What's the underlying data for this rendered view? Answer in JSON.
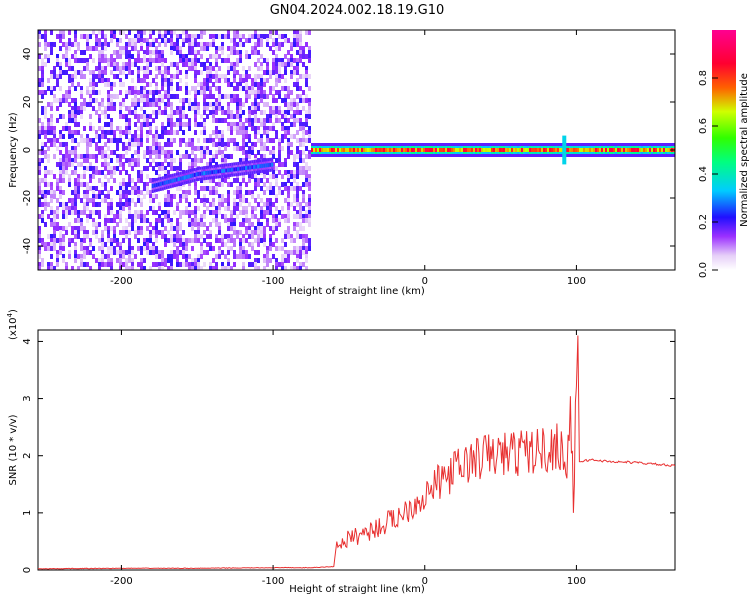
{
  "title": "GN04.2024.002.18.19.G10",
  "chart_data": [
    {
      "type": "heatmap",
      "xlabel": "Height of straight line (km)",
      "ylabel": "Frequency (Hz)",
      "xlim": [
        -255,
        165
      ],
      "ylim": [
        -50,
        50
      ],
      "x_ticks": [
        -200,
        -100,
        0,
        100
      ],
      "y_ticks": [
        -40,
        -20,
        0,
        20,
        40
      ],
      "colorbar": {
        "label": "Normalized spectral amplitude",
        "range": [
          0.0,
          1.0
        ],
        "ticks": [
          "0.0",
          "0.2",
          "0.4",
          "0.6",
          "0.8"
        ],
        "colormap": "rainbow (purple → blue → cyan → green → yellow → red → magenta)"
      },
      "features": {
        "noise_region_x": [
          -255,
          -75
        ],
        "trace_segments": [
          {
            "x": [
              -180,
              -150
            ],
            "freq": [
              -15,
              -10
            ],
            "amplitude": 0.3
          },
          {
            "x": [
              -150,
              -100
            ],
            "freq": [
              -10,
              -6
            ],
            "amplitude": 0.3
          },
          {
            "x": [
              -75,
              165
            ],
            "freq": [
              0,
              0
            ],
            "amplitude": 0.9
          }
        ],
        "spike_at_x": 92
      }
    },
    {
      "type": "line",
      "xlabel": "Height of straight line (km)",
      "ylabel": "SNR (10 * v/v)",
      "y_scale_label": "(x10",
      "y_scale_exp": "4",
      "y_scale_close": ")",
      "xlim": [
        -255,
        165
      ],
      "ylim": [
        0,
        4.2
      ],
      "x_ticks": [
        -200,
        -100,
        0,
        100
      ],
      "y_ticks": [
        0,
        1,
        2,
        3,
        4
      ],
      "line_color": "#e83030",
      "series": [
        {
          "x": [
            -255,
            -200,
            -150,
            -100,
            -75,
            -60,
            -58,
            -55,
            -50,
            -45,
            -40,
            -30,
            -20,
            -10,
            0,
            10,
            20,
            30,
            40,
            50,
            60,
            70,
            80,
            85,
            90,
            93,
            96,
            98,
            100,
            101,
            102,
            110,
            120,
            140,
            165
          ],
          "y": [
            0.02,
            0.03,
            0.03,
            0.04,
            0.04,
            0.06,
            0.5,
            0.45,
            0.55,
            0.6,
            0.65,
            0.75,
            0.9,
            1.1,
            1.3,
            1.55,
            1.75,
            1.9,
            2.0,
            2.02,
            2.05,
            2.08,
            2.1,
            2.15,
            2.2,
            1.6,
            2.8,
            1.2,
            3.2,
            4.1,
            1.9,
            1.93,
            1.9,
            1.88,
            1.82
          ]
        }
      ]
    }
  ]
}
